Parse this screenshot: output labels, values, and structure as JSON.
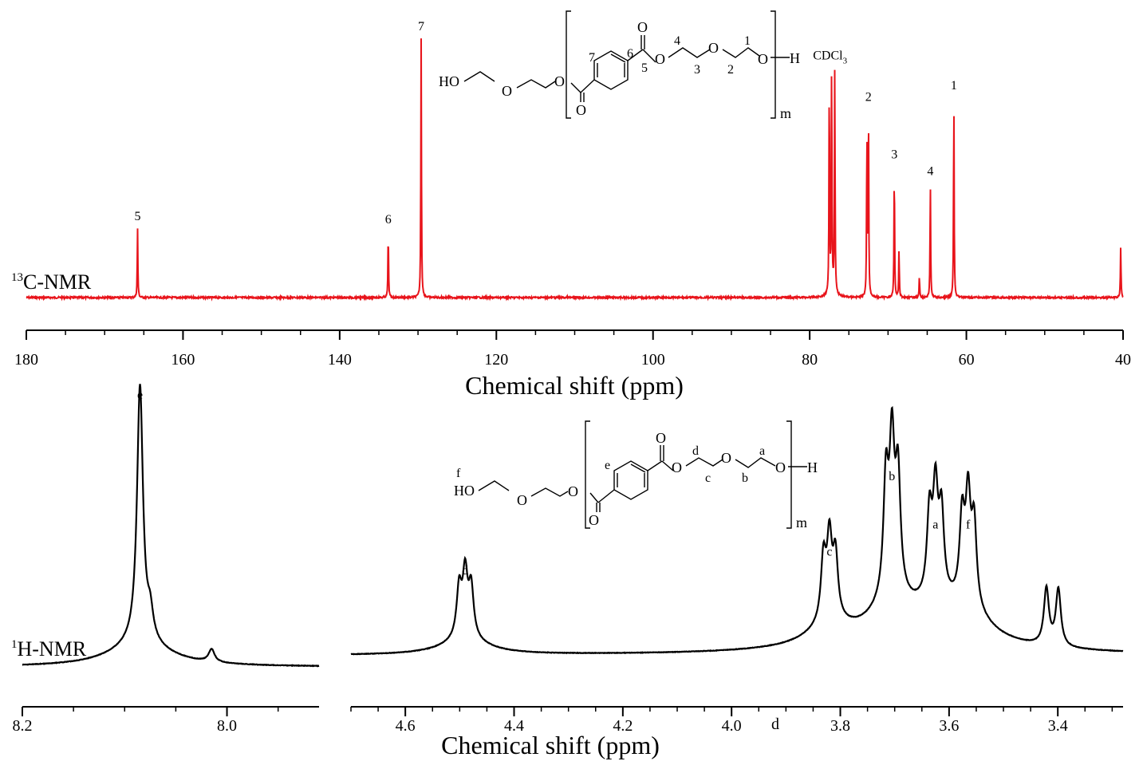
{
  "chart_data": [
    {
      "type": "line",
      "name": "13C-NMR spectrum",
      "spectrum_label": {
        "sup": "13",
        "text": "C-NMR"
      },
      "xlabel": "Chemical shift (ppm)",
      "xlim": [
        180,
        40
      ],
      "xticks": [
        "180",
        "160",
        "140",
        "120",
        "100",
        "80",
        "60",
        "40"
      ],
      "tick_values": [
        180,
        160,
        140,
        120,
        100,
        80,
        60,
        40
      ],
      "color": "#e8141b",
      "peaks": [
        {
          "label": "5",
          "ppm": 165.8,
          "height": 0.267
        },
        {
          "label": "6",
          "ppm": 133.8,
          "height": 0.256
        },
        {
          "label": "7",
          "ppm": 129.6,
          "height": 1.0
        },
        {
          "label": "",
          "ppm": 77.5,
          "height": 0.842
        },
        {
          "label": "CDCl3",
          "ppm": 77.2,
          "height": 0.888
        },
        {
          "label": "",
          "ppm": 76.8,
          "height": 0.873
        },
        {
          "label": "",
          "ppm": 72.7,
          "height": 0.634
        },
        {
          "label": "2",
          "ppm": 72.5,
          "height": 0.728
        },
        {
          "label": "3",
          "ppm": 69.2,
          "height": 0.506
        },
        {
          "label": "",
          "ppm": 68.6,
          "height": 0.186
        },
        {
          "label": "",
          "ppm": 66.0,
          "height": 0.082
        },
        {
          "label": "4",
          "ppm": 64.6,
          "height": 0.442
        },
        {
          "label": "1",
          "ppm": 61.6,
          "height": 0.772
        },
        {
          "label": "",
          "ppm": 40.3,
          "height": 0.198
        }
      ]
    },
    {
      "type": "line",
      "name": "1H-NMR spectrum",
      "spectrum_label": {
        "sup": "1",
        "text": "H-NMR"
      },
      "xlabel": "Chemical shift (ppm)",
      "color": "#000000",
      "panels": [
        {
          "xlim": [
            8.2,
            7.91
          ],
          "xticks": [
            "8.2",
            "8.0"
          ],
          "tick_values": [
            8.2,
            8.0
          ],
          "peaks": [
            {
              "label": "e",
              "ppm": 8.085,
              "height": 1.0
            },
            {
              "label": "",
              "ppm": 8.075,
              "height": 0.1
            },
            {
              "label": "",
              "ppm": 8.015,
              "height": 0.05
            }
          ]
        },
        {
          "xlim": [
            4.7,
            3.28
          ],
          "xticks": [
            "4.6",
            "4.4",
            "4.2",
            "4.0",
            "3.8",
            "3.6",
            "3.4"
          ],
          "tick_values": [
            4.6,
            4.4,
            4.2,
            4.0,
            3.8,
            3.6,
            3.4
          ],
          "peaks": [
            {
              "label": "d",
              "ppm": 4.49,
              "height": 0.26
            },
            {
              "label": "c",
              "ppm": 3.82,
              "height": 0.33
            },
            {
              "label": "b",
              "ppm": 3.705,
              "height": 0.61
            },
            {
              "label": "a",
              "ppm": 3.625,
              "height": 0.43
            },
            {
              "label": "f",
              "ppm": 3.565,
              "height": 0.43
            },
            {
              "label": "",
              "ppm": 3.41,
              "height": 0.24
            }
          ]
        }
      ],
      "extra_tick_label": "d"
    }
  ],
  "structures": {
    "c13": {
      "left_group": "HO",
      "oxygen": "O",
      "carbonyl_oxygen": "O",
      "ester_oxygen": "O",
      "hydrogen": "H",
      "repeat": "m",
      "labels": [
        "7",
        "6",
        "5",
        "4",
        "3",
        "2",
        "1"
      ]
    },
    "h1": {
      "left_group": "HO",
      "hydroxyl_label": "f",
      "oxygen": "O",
      "carbonyl_oxygen": "O",
      "ester_oxygen": "O",
      "hydrogen": "H",
      "repeat": "m",
      "labels": [
        "e",
        "d",
        "c",
        "b",
        "a"
      ]
    }
  }
}
